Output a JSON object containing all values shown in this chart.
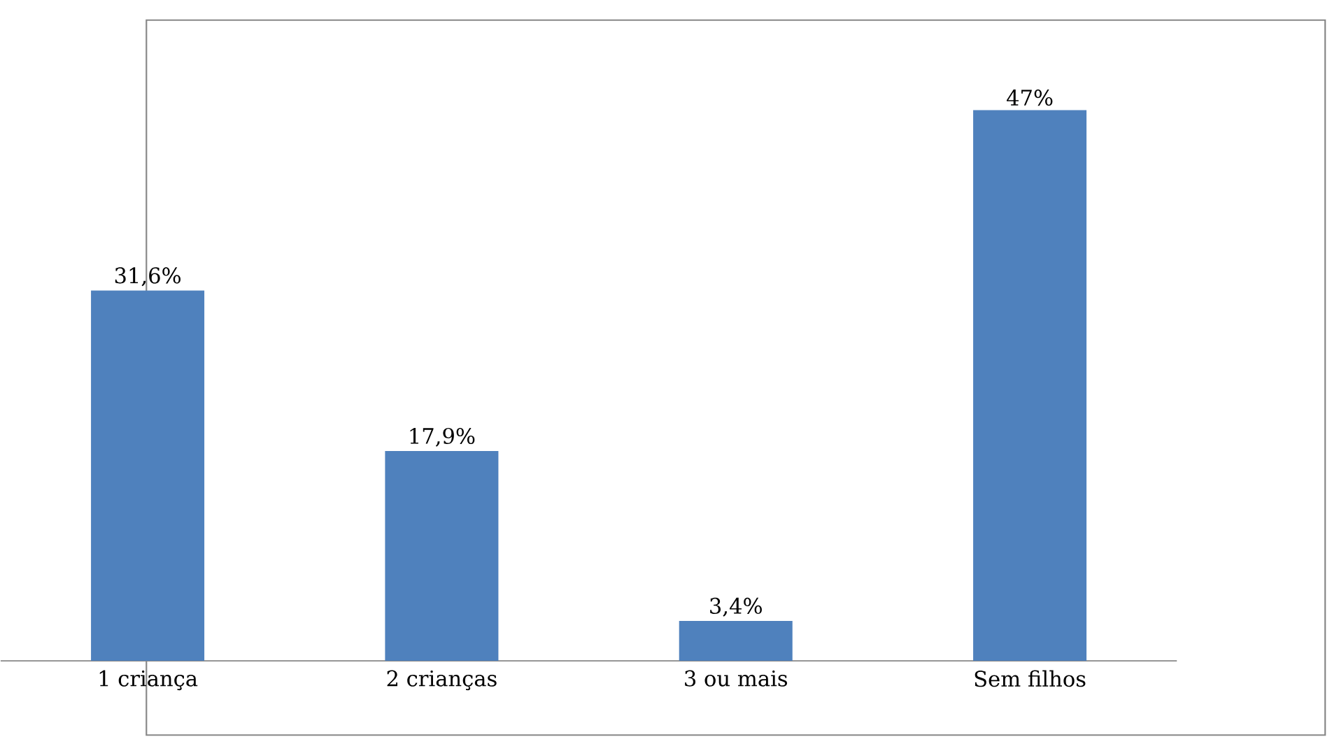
{
  "chart_data": {
    "type": "bar",
    "categories": [
      "1 criança",
      "2 crianças",
      "3 ou mais",
      "Sem filhos"
    ],
    "values": [
      31.6,
      17.9,
      3.4,
      47
    ],
    "value_labels": [
      "31,6%",
      "17,9%",
      "3,4%",
      "47%"
    ],
    "color": "#4f81bd"
  }
}
